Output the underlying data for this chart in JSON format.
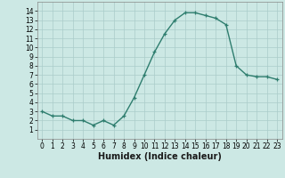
{
  "x": [
    0,
    1,
    2,
    3,
    4,
    5,
    6,
    7,
    8,
    9,
    10,
    11,
    12,
    13,
    14,
    15,
    16,
    17,
    18,
    19,
    20,
    21,
    22,
    23
  ],
  "y": [
    3.0,
    2.5,
    2.5,
    2.0,
    2.0,
    1.5,
    2.0,
    1.5,
    2.5,
    4.5,
    7.0,
    9.5,
    11.5,
    13.0,
    13.8,
    13.8,
    13.5,
    13.2,
    12.5,
    8.0,
    7.0,
    6.8,
    6.8,
    6.5
  ],
  "xlabel": "Humidex (Indice chaleur)",
  "ylim": [
    0,
    15
  ],
  "xlim": [
    -0.5,
    23.5
  ],
  "yticks": [
    1,
    2,
    3,
    4,
    5,
    6,
    7,
    8,
    9,
    10,
    11,
    12,
    13,
    14
  ],
  "xticks": [
    0,
    1,
    2,
    3,
    4,
    5,
    6,
    7,
    8,
    9,
    10,
    11,
    12,
    13,
    14,
    15,
    16,
    17,
    18,
    19,
    20,
    21,
    22,
    23
  ],
  "line_color": "#2e7d6e",
  "marker": "+",
  "bg_color": "#cce8e4",
  "grid_color": "#aaccca",
  "xlabel_fontsize": 7,
  "tick_fontsize": 5.5
}
